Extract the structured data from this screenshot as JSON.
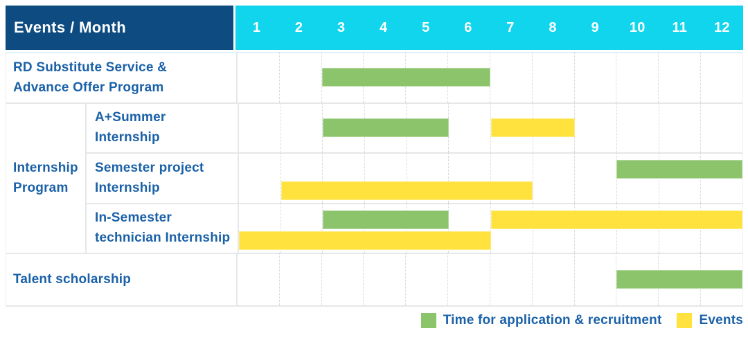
{
  "header": {
    "title": "Events / Month",
    "months": [
      "1",
      "2",
      "3",
      "4",
      "5",
      "6",
      "7",
      "8",
      "9",
      "10",
      "11",
      "12"
    ]
  },
  "group": {
    "line1": "Internship",
    "line2": "Program"
  },
  "rows": [
    {
      "line1": "RD Substitute Service &",
      "line2": "Advance Offer Program"
    },
    {
      "line1": "A+Summer",
      "line2": "Internship"
    },
    {
      "line1": "Semester project",
      "line2": "Internship"
    },
    {
      "line1": "In-Semester",
      "line2": "technician Internship"
    },
    {
      "line1": "Talent scholarship",
      "line2": ""
    }
  ],
  "legend": {
    "items": [
      {
        "key": "application",
        "label": "Time for application & recruitment",
        "color": "#8bc46a"
      },
      {
        "key": "event",
        "label": "Events",
        "color": "#ffe23e"
      }
    ]
  },
  "colors": {
    "header_bg": "#0d4b80",
    "months_bg": "#10d5ec",
    "text_blue": "#1a61a8",
    "application": "#8bc46a",
    "event": "#ffe23e",
    "grid": "#e5e7e9",
    "grid_dashed": "#d7dce1"
  },
  "chart_data": {
    "type": "gantt",
    "title": "Events / Month",
    "x_axis": {
      "label": "Month",
      "ticks": [
        1,
        2,
        3,
        4,
        5,
        6,
        7,
        8,
        9,
        10,
        11,
        12
      ]
    },
    "legend_position": "bottom-right",
    "series_types": {
      "application": "Time for application & recruitment",
      "event": "Events"
    },
    "rows": [
      {
        "group": "",
        "label": "RD Substitute Service & Advance Offer Program",
        "bars": [
          {
            "type": "application",
            "start": 3,
            "end": 6,
            "lane": "center"
          }
        ]
      },
      {
        "group": "Internship Program",
        "label": "A+Summer Internship",
        "bars": [
          {
            "type": "application",
            "start": 3,
            "end": 5,
            "lane": "center"
          },
          {
            "type": "event",
            "start": 7,
            "end": 8,
            "lane": "center"
          }
        ]
      },
      {
        "group": "Internship Program",
        "label": "Semester project Internship",
        "bars": [
          {
            "type": "application",
            "start": 10,
            "end": 12,
            "lane": "top"
          },
          {
            "type": "event",
            "start": 2,
            "end": 7,
            "lane": "bottom"
          }
        ]
      },
      {
        "group": "Internship Program",
        "label": "In-Semester technician Internship",
        "bars": [
          {
            "type": "application",
            "start": 3,
            "end": 5,
            "lane": "top"
          },
          {
            "type": "event",
            "start": 7,
            "end": 12,
            "lane": "top"
          },
          {
            "type": "event",
            "start": 1,
            "end": 6,
            "lane": "bottom"
          }
        ]
      },
      {
        "group": "",
        "label": "Talent scholarship",
        "bars": [
          {
            "type": "application",
            "start": 10,
            "end": 12,
            "lane": "center"
          }
        ]
      }
    ]
  }
}
